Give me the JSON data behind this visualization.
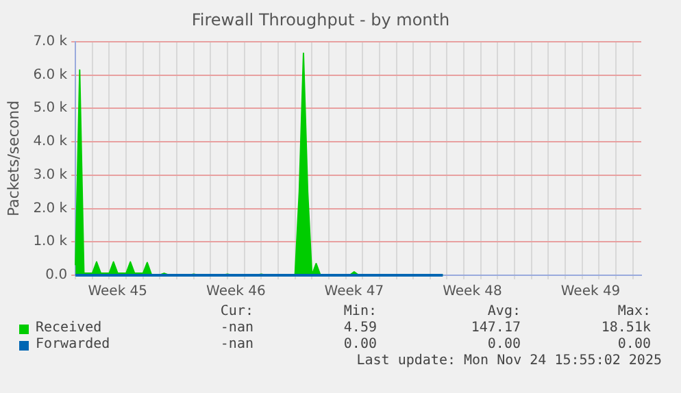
{
  "chart_data": {
    "type": "area",
    "title": "Firewall Throughput - by month",
    "ylabel": "Packets/second",
    "categories": [
      null,
      null,
      null,
      null,
      null,
      null,
      null,
      null,
      null,
      null,
      "Week 45",
      null,
      null,
      null,
      null,
      null,
      null,
      null,
      null,
      null,
      null,
      null,
      null,
      null,
      null,
      null,
      null,
      null,
      null,
      null,
      null,
      null,
      null,
      null,
      null,
      null,
      null,
      null,
      "Week 46",
      null,
      null,
      null,
      null,
      null,
      null,
      null,
      null,
      null,
      null,
      null,
      null,
      null,
      null,
      null,
      null,
      null,
      null,
      null,
      null,
      null,
      null,
      null,
      null,
      null,
      null,
      null,
      "Week 47",
      null,
      null,
      null,
      null,
      null,
      null,
      null,
      null,
      null,
      null,
      null,
      null,
      null,
      null,
      null,
      null,
      null,
      null,
      null,
      null,
      null,
      null,
      null,
      null,
      null,
      null,
      null,
      "Week 48",
      null,
      null,
      null,
      null,
      null,
      null,
      null,
      null,
      null,
      null,
      null,
      null,
      null,
      null,
      null,
      null,
      null,
      null,
      null,
      null,
      null,
      null,
      null,
      null,
      null,
      null,
      null,
      "Week 49",
      null,
      null,
      null,
      null,
      null,
      null,
      null,
      null,
      null,
      null,
      null,
      null
    ],
    "ylim": [
      0,
      7000
    ],
    "yticks": [
      {
        "value": 0,
        "label": "0.0"
      },
      {
        "value": 1000,
        "label": "1.0 k"
      },
      {
        "value": 2000,
        "label": "2.0 k"
      },
      {
        "value": 3000,
        "label": "3.0 k"
      },
      {
        "value": 4000,
        "label": "4.0 k"
      },
      {
        "value": 5000,
        "label": "5.0 k"
      },
      {
        "value": 6000,
        "label": "6.0 k"
      },
      {
        "value": 7000,
        "label": "7.0 k"
      }
    ],
    "grid": true,
    "legend": "bottom left",
    "series": [
      {
        "name": "Received",
        "color": "#00cc00",
        "values": [
          300,
          6150,
          60,
          60,
          60,
          400,
          60,
          60,
          60,
          400,
          60,
          60,
          60,
          400,
          60,
          60,
          60,
          380,
          20,
          10,
          10,
          60,
          10,
          10,
          10,
          10,
          10,
          10,
          30,
          10,
          10,
          10,
          10,
          10,
          10,
          10,
          30,
          10,
          10,
          10,
          10,
          10,
          10,
          10,
          30,
          10,
          10,
          10,
          10,
          10,
          10,
          10,
          10,
          2500,
          6650,
          2500,
          10,
          350,
          10,
          10,
          10,
          10,
          10,
          10,
          10,
          10,
          100,
          10,
          10,
          10,
          10,
          10,
          10,
          10,
          10,
          10,
          10,
          10,
          10,
          10,
          10,
          10,
          10,
          10,
          10,
          10,
          10,
          10,
          null,
          null,
          null,
          null,
          null,
          null,
          null,
          null,
          null,
          null,
          null,
          null,
          null,
          null,
          null,
          null,
          null,
          null,
          null,
          null,
          null,
          null,
          null,
          null,
          null,
          null,
          null,
          null,
          null,
          null,
          null,
          null,
          null,
          null,
          null,
          null,
          null,
          null,
          null,
          null,
          null,
          null,
          null,
          null,
          null,
          null,
          null
        ]
      },
      {
        "name": "Forwarded",
        "color": "#0066b3",
        "type": "line",
        "values": [
          0,
          0,
          0,
          0,
          0,
          0,
          0,
          0,
          0,
          0,
          0,
          0,
          0,
          0,
          0,
          0,
          0,
          0,
          0,
          0,
          0,
          0,
          0,
          0,
          0,
          0,
          0,
          0,
          0,
          0,
          0,
          0,
          0,
          0,
          0,
          0,
          0,
          0,
          0,
          0,
          0,
          0,
          0,
          0,
          0,
          0,
          0,
          0,
          0,
          0,
          0,
          0,
          0,
          0,
          0,
          0,
          0,
          0,
          0,
          0,
          0,
          0,
          0,
          0,
          0,
          0,
          0,
          0,
          0,
          0,
          0,
          0,
          0,
          0,
          0,
          0,
          0,
          0,
          0,
          0,
          0,
          0,
          0,
          0,
          0,
          0,
          0,
          0,
          null,
          null,
          null,
          null,
          null,
          null,
          null,
          null,
          null,
          null,
          null,
          null,
          null,
          null,
          null,
          null,
          null,
          null,
          null,
          null,
          null,
          null,
          null,
          null,
          null,
          null,
          null,
          null,
          null,
          null,
          null,
          null,
          null,
          null,
          null,
          null,
          null,
          null,
          null,
          null,
          null,
          null,
          null,
          null,
          null,
          null,
          null
        ]
      }
    ],
    "annotations": [
      "Cur:",
      "Min:",
      "Avg:",
      "Max:",
      "-nan",
      "4.59",
      "147.17",
      "18.51k",
      "-nan",
      "0.00",
      "0.00",
      "0.00",
      "Last update: Mon Nov 24 15:55:02 2025"
    ]
  }
}
